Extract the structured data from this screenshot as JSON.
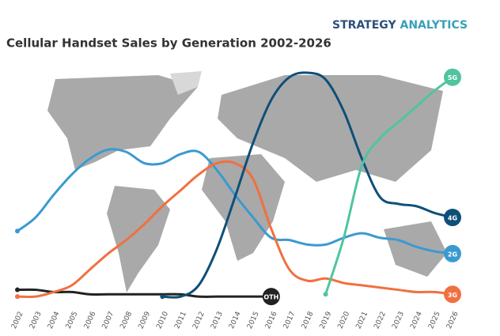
{
  "brand": [
    "STRATEGY",
    "ANALYTICS"
  ],
  "chart_data": {
    "type": "line",
    "title": "Cellular Handset Sales by Generation 2002-2026",
    "x": [
      2002,
      2003,
      2004,
      2005,
      2006,
      2007,
      2008,
      2009,
      2010,
      2011,
      2012,
      2013,
      2014,
      2015,
      2016,
      2017,
      2018,
      2019,
      2020,
      2021,
      2022,
      2023,
      2024,
      2025,
      2026
    ],
    "ylim": [
      0,
      100
    ],
    "series": [
      {
        "name": "OTH",
        "color": "#222222",
        "values": [
          4,
          4,
          3,
          3,
          2,
          2,
          2,
          2,
          2,
          2,
          1,
          1,
          1,
          1,
          1,
          null,
          null,
          null,
          null,
          null,
          null,
          null,
          null,
          null,
          null
        ]
      },
      {
        "name": "2G",
        "color": "#3a9ad0",
        "values": [
          30,
          36,
          46,
          55,
          62,
          66,
          65,
          60,
          60,
          64,
          65,
          57,
          46,
          36,
          27,
          26,
          24,
          24,
          27,
          29,
          27,
          26,
          23,
          21,
          20
        ]
      },
      {
        "name": "3G",
        "color": "#f07040",
        "values": [
          1,
          1,
          3,
          6,
          13,
          20,
          26,
          33,
          41,
          48,
          55,
          60,
          60,
          53,
          31,
          13,
          8,
          9,
          7,
          6,
          5,
          4,
          3,
          3,
          2
        ]
      },
      {
        "name": "4G",
        "color": "#0e4f78",
        "values": [
          null,
          null,
          null,
          null,
          null,
          null,
          null,
          null,
          1,
          1,
          6,
          22,
          45,
          69,
          88,
          98,
          100,
          97,
          83,
          62,
          45,
          42,
          41,
          38,
          36
        ]
      },
      {
        "name": "5G",
        "color": "#4fc4a0",
        "values": [
          null,
          null,
          null,
          null,
          null,
          null,
          null,
          null,
          null,
          null,
          null,
          null,
          null,
          null,
          null,
          null,
          null,
          2,
          27,
          59,
          71,
          78,
          85,
          92,
          98
        ]
      }
    ]
  }
}
